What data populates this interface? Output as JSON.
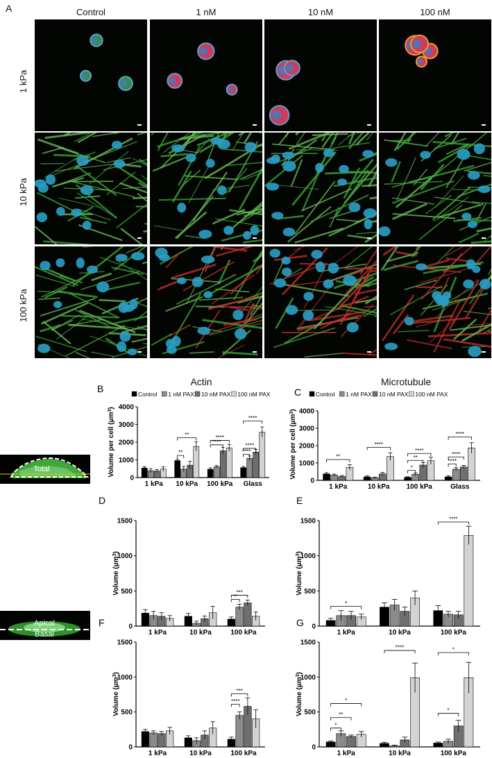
{
  "panelA": {
    "letter": "A",
    "columns": [
      "Control",
      "1 nM",
      "10 nM",
      "100 nM"
    ],
    "rows": [
      "1 kPa",
      "10 kPa",
      "100 kPa"
    ]
  },
  "charts_titles": {
    "actin": "Actin",
    "microtubule": "Microtubule"
  },
  "schematics": {
    "total_label": "Total",
    "apical_label": "Apical",
    "basal_label": "Basal"
  },
  "legend": {
    "items": [
      "Control",
      "1 nM PAX",
      "10 nM PAX",
      "100 nM PAX"
    ],
    "colors": [
      "#000000",
      "#8c8c8c",
      "#6f6f6f",
      "#d3d3d3"
    ]
  },
  "chart_data": [
    {
      "id": "B",
      "type": "bar",
      "title": "",
      "ylabel": "Volume per cell (μm³)",
      "ylim": [
        0,
        4000
      ],
      "yticks": [
        0,
        1000,
        2000,
        3000,
        4000
      ],
      "categories": [
        "1 kPa",
        "10 kPa",
        "100 kPa",
        "Glass"
      ],
      "series": [
        {
          "name": "Control",
          "values": [
            540,
            960,
            470,
            560
          ],
          "err": [
            80,
            90,
            80,
            70
          ]
        },
        {
          "name": "1 nM PAX",
          "values": [
            390,
            480,
            610,
            1090
          ],
          "err": [
            110,
            150,
            70,
            130
          ]
        },
        {
          "name": "10 nM PAX",
          "values": [
            370,
            700,
            1510,
            1440
          ],
          "err": [
            80,
            220,
            200,
            150
          ]
        },
        {
          "name": "100 nM PAX",
          "values": [
            480,
            1760,
            1680,
            2570
          ],
          "err": [
            130,
            260,
            190,
            290
          ]
        }
      ],
      "sig": [
        {
          "cat": 1,
          "s1": 0,
          "s2": 1,
          "label": "**",
          "y": 1250
        },
        {
          "cat": 1,
          "s1": 0,
          "s2": 3,
          "label": "**",
          "y": 2250
        },
        {
          "cat": 2,
          "s1": 0,
          "s2": 2,
          "label": "****",
          "y": 1850
        },
        {
          "cat": 2,
          "s1": 0,
          "s2": 3,
          "label": "****",
          "y": 2100
        },
        {
          "cat": 3,
          "s1": 0,
          "s2": 1,
          "label": "****",
          "y": 1320
        },
        {
          "cat": 3,
          "s1": 0,
          "s2": 2,
          "label": "****",
          "y": 1650
        },
        {
          "cat": 3,
          "s1": 0,
          "s2": 3,
          "label": "****",
          "y": 3200
        }
      ]
    },
    {
      "id": "C",
      "type": "bar",
      "title": "",
      "ylabel": "Volume per cell (μm³)",
      "ylim": [
        0,
        4000
      ],
      "yticks": [
        0,
        1000,
        2000,
        3000,
        4000
      ],
      "categories": [
        "1 kPa",
        "10 kPa",
        "100 kPa",
        "Glass"
      ],
      "series": [
        {
          "name": "Control",
          "values": [
            370,
            200,
            170,
            200
          ],
          "err": [
            70,
            60,
            40,
            60
          ]
        },
        {
          "name": "1 nM PAX",
          "values": [
            300,
            150,
            350,
            640
          ],
          "err": [
            60,
            40,
            80,
            90
          ]
        },
        {
          "name": "10 nM PAX",
          "values": [
            220,
            370,
            880,
            770
          ],
          "err": [
            60,
            90,
            150,
            90
          ]
        },
        {
          "name": "100 nM PAX",
          "values": [
            750,
            1370,
            1130,
            1870
          ],
          "err": [
            150,
            220,
            200,
            300
          ]
        }
      ],
      "sig": [
        {
          "cat": 0,
          "s1": 0,
          "s2": 3,
          "label": "**",
          "y": 1200
        },
        {
          "cat": 1,
          "s1": 0,
          "s2": 3,
          "label": "****",
          "y": 1900
        },
        {
          "cat": 2,
          "s1": 0,
          "s2": 1,
          "label": "*",
          "y": 570
        },
        {
          "cat": 2,
          "s1": 0,
          "s2": 2,
          "label": "**",
          "y": 1150
        },
        {
          "cat": 2,
          "s1": 0,
          "s2": 3,
          "label": "****",
          "y": 1550
        },
        {
          "cat": 3,
          "s1": 0,
          "s2": 1,
          "label": "****",
          "y": 950
        },
        {
          "cat": 3,
          "s1": 0,
          "s2": 2,
          "label": "****",
          "y": 1350
        },
        {
          "cat": 3,
          "s1": 0,
          "s2": 3,
          "label": "****",
          "y": 2500
        }
      ]
    },
    {
      "id": "D",
      "type": "bar",
      "title": "",
      "ylabel": "Volume (μm³)",
      "ylim": [
        0,
        1500
      ],
      "yticks": [
        0,
        500,
        1000,
        1500
      ],
      "categories": [
        "1 kPa",
        "10 kPa",
        "100 kPa"
      ],
      "series": [
        {
          "name": "Control",
          "values": [
            185,
            140,
            100
          ],
          "err": [
            50,
            40,
            30
          ]
        },
        {
          "name": "1 nM PAX",
          "values": [
            150,
            40,
            270
          ],
          "err": [
            60,
            30,
            40
          ]
        },
        {
          "name": "10 nM PAX",
          "values": [
            140,
            105,
            330
          ],
          "err": [
            50,
            40,
            40
          ]
        },
        {
          "name": "100 nM PAX",
          "values": [
            110,
            190,
            140
          ],
          "err": [
            40,
            90,
            60
          ]
        }
      ],
      "sig": [
        {
          "cat": 2,
          "s1": 0,
          "s2": 1,
          "label": "**",
          "y": 380
        },
        {
          "cat": 2,
          "s1": 0,
          "s2": 2,
          "label": "***",
          "y": 440
        }
      ]
    },
    {
      "id": "E",
      "type": "bar",
      "title": "",
      "ylabel": "Volume (μm³)",
      "ylim": [
        0,
        1500
      ],
      "yticks": [
        0,
        500,
        1000,
        1500
      ],
      "categories": [
        "1 kPa",
        "10 kPa",
        "100 kPa"
      ],
      "series": [
        {
          "name": "Control",
          "values": [
            80,
            270,
            220
          ],
          "err": [
            30,
            60,
            70
          ]
        },
        {
          "name": "1 nM PAX",
          "values": [
            150,
            300,
            170
          ],
          "err": [
            70,
            80,
            40
          ]
        },
        {
          "name": "10 nM PAX",
          "values": [
            150,
            210,
            160
          ],
          "err": [
            60,
            60,
            50
          ]
        },
        {
          "name": "100 nM PAX",
          "values": [
            130,
            400,
            1290
          ],
          "err": [
            40,
            100,
            130
          ]
        }
      ],
      "sig": [
        {
          "cat": 0,
          "s1": 0,
          "s2": 3,
          "label": "*",
          "y": 280
        },
        {
          "cat": 2,
          "s1": 0,
          "s2": 3,
          "label": "****",
          "y": 1480
        }
      ]
    },
    {
      "id": "F",
      "type": "bar",
      "title": "",
      "ylabel": "Volume (μm³)",
      "ylim": [
        0,
        1500
      ],
      "yticks": [
        0,
        500,
        1000,
        1500
      ],
      "categories": [
        "1 kPa",
        "10 kPa",
        "100 kPa"
      ],
      "series": [
        {
          "name": "Control",
          "values": [
            220,
            130,
            110
          ],
          "err": [
            30,
            30,
            30
          ]
        },
        {
          "name": "1 nM PAX",
          "values": [
            200,
            90,
            450
          ],
          "err": [
            30,
            40,
            50
          ]
        },
        {
          "name": "10 nM PAX",
          "values": [
            190,
            170,
            580
          ],
          "err": [
            30,
            60,
            120
          ]
        },
        {
          "name": "100 nM PAX",
          "values": [
            230,
            270,
            400
          ],
          "err": [
            50,
            90,
            130
          ]
        }
      ],
      "sig": [
        {
          "cat": 2,
          "s1": 0,
          "s2": 1,
          "label": "****",
          "y": 610
        },
        {
          "cat": 2,
          "s1": 0,
          "s2": 2,
          "label": "***",
          "y": 760
        }
      ]
    },
    {
      "id": "G",
      "type": "bar",
      "title": "",
      "ylabel": "Volume (μm³)",
      "ylim": [
        0,
        1500
      ],
      "yticks": [
        0,
        500,
        1000,
        1500
      ],
      "categories": [
        "1 kPa",
        "10 kPa",
        "100 kPa"
      ],
      "series": [
        {
          "name": "Control",
          "values": [
            70,
            50,
            55
          ],
          "err": [
            15,
            15,
            15
          ]
        },
        {
          "name": "1 nM PAX",
          "values": [
            190,
            15,
            80
          ],
          "err": [
            40,
            10,
            30
          ]
        },
        {
          "name": "10 nM PAX",
          "values": [
            150,
            100,
            300
          ],
          "err": [
            20,
            40,
            80
          ]
        },
        {
          "name": "100 nM PAX",
          "values": [
            180,
            990,
            990
          ],
          "err": [
            40,
            210,
            220
          ]
        }
      ],
      "sig": [
        {
          "cat": 0,
          "s1": 0,
          "s2": 1,
          "label": "*",
          "y": 270
        },
        {
          "cat": 0,
          "s1": 0,
          "s2": 2,
          "label": "**",
          "y": 420
        },
        {
          "cat": 0,
          "s1": 0,
          "s2": 3,
          "label": "*",
          "y": 620
        },
        {
          "cat": 1,
          "s1": 0,
          "s2": 3,
          "label": "****",
          "y": 1380
        },
        {
          "cat": 2,
          "s1": 0,
          "s2": 2,
          "label": "*",
          "y": 480
        },
        {
          "cat": 2,
          "s1": 0,
          "s2": 3,
          "label": "*",
          "y": 1350
        }
      ]
    }
  ]
}
